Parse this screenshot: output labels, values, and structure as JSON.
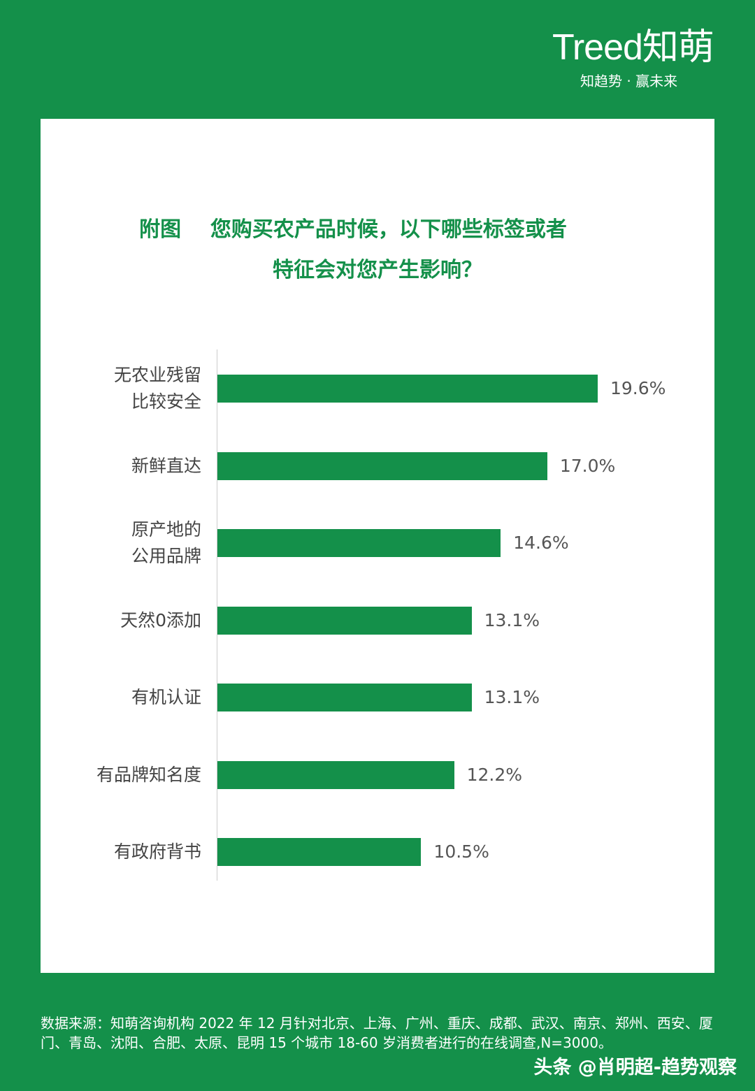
{
  "logo": {
    "brand": "Treed知萌",
    "slogan": "知趋势 · 赢未来"
  },
  "chart_data": {
    "type": "bar",
    "orientation": "horizontal",
    "title_line1": "附图    您购买农产品时候，以下哪些标签或者",
    "title_line2": "特征会对您产生影响？",
    "categories": [
      "无农业残留\n比较安全",
      "新鲜直达",
      "原产地的\n公用品牌",
      "天然0添加",
      "有机认证",
      "有品牌知名度",
      "有政府背书"
    ],
    "values": [
      19.6,
      17.0,
      14.6,
      13.1,
      13.1,
      12.2,
      10.5
    ],
    "labels": [
      "19.6%",
      "17.0%",
      "14.6%",
      "13.1%",
      "13.1%",
      "12.2%",
      "10.5%"
    ],
    "xlim": [
      0,
      20
    ],
    "color": "#14904a"
  },
  "footer": {
    "source": "数据来源：知萌咨询机构 2022 年 12 月针对北京、上海、广州、重庆、成都、武汉、南京、郑州、西安、厦门、青岛、沈阳、合肥、太原、昆明 15 个城市 18-60 岁消费者进行的在线调查,N=3000。",
    "signature": "头条 @肖明超-趋势观察"
  }
}
